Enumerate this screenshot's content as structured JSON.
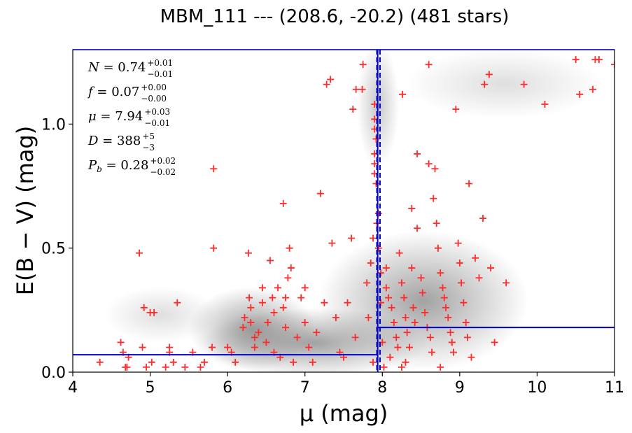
{
  "chart_data": {
    "type": "scatter",
    "title": "MBM_111 --- (208.6, -20.2) (481 stars)",
    "xlabel": "μ (mag)",
    "ylabel": "E(B − V) (mag)",
    "xlim": [
      4,
      11
    ],
    "ylim": [
      0,
      1.3
    ],
    "xticks": [
      "4",
      "5",
      "6",
      "7",
      "8",
      "9",
      "10",
      "11"
    ],
    "yticks": [
      "0.0",
      "0.5",
      "1.0"
    ],
    "grid": false,
    "background": "grayscale stellar density map",
    "colors": {
      "points": "#ff2a2a",
      "model": "#0000cc",
      "frame": "#0000cc"
    },
    "annotations": [
      {
        "name": "N",
        "value": "0.74",
        "sup": "+0.01",
        "sub": "−0.01"
      },
      {
        "name": "f",
        "value": "0.07",
        "sup": "+0.00",
        "sub": "−0.00"
      },
      {
        "name": "μ",
        "value": "7.94",
        "sup": "+0.03",
        "sub": "−0.01"
      },
      {
        "name": "D",
        "value": "388",
        "sup": "+5",
        "sub": "−3"
      },
      {
        "name": "P_b",
        "value": "0.28",
        "sup": "+0.02",
        "sub": "−0.02"
      }
    ],
    "model": {
      "distance_modulus": 7.94,
      "distance_modulus_lower": 7.93,
      "distance_modulus_upper": 7.97,
      "foreground_ebv": 0.07,
      "background_ebv": 0.18
    },
    "points": [
      [
        4.35,
        0.04
      ],
      [
        4.62,
        0.12
      ],
      [
        4.65,
        0.08
      ],
      [
        4.72,
        0.06
      ],
      [
        4.7,
        0.02
      ],
      [
        4.68,
        0.02
      ],
      [
        4.86,
        0.48
      ],
      [
        4.92,
        0.26
      ],
      [
        4.9,
        0.1
      ],
      [
        5.0,
        0.24
      ],
      [
        5.05,
        0.24
      ],
      [
        5.02,
        0.04
      ],
      [
        4.95,
        0.02
      ],
      [
        5.2,
        0.02
      ],
      [
        5.25,
        0.08
      ],
      [
        5.25,
        0.1
      ],
      [
        5.35,
        0.28
      ],
      [
        5.3,
        0.04
      ],
      [
        5.45,
        0.02
      ],
      [
        5.55,
        0.08
      ],
      [
        5.65,
        0.02
      ],
      [
        5.7,
        0.04
      ],
      [
        5.8,
        0.1
      ],
      [
        5.82,
        0.5
      ],
      [
        5.82,
        0.82
      ],
      [
        6.0,
        0.1
      ],
      [
        6.05,
        0.08
      ],
      [
        6.1,
        0.04
      ],
      [
        6.2,
        0.18
      ],
      [
        6.22,
        0.22
      ],
      [
        6.27,
        0.48
      ],
      [
        6.28,
        0.3
      ],
      [
        6.3,
        0.26
      ],
      [
        6.3,
        0.2
      ],
      [
        6.35,
        0.1
      ],
      [
        6.35,
        0.14
      ],
      [
        6.4,
        0.16
      ],
      [
        6.45,
        0.34
      ],
      [
        6.45,
        0.28
      ],
      [
        6.5,
        0.12
      ],
      [
        6.52,
        0.2
      ],
      [
        6.55,
        0.45
      ],
      [
        6.58,
        0.3
      ],
      [
        6.6,
        0.24
      ],
      [
        6.6,
        0.08
      ],
      [
        6.65,
        0.34
      ],
      [
        6.68,
        0.06
      ],
      [
        6.72,
        0.68
      ],
      [
        6.72,
        0.26
      ],
      [
        6.75,
        0.3
      ],
      [
        6.75,
        0.18
      ],
      [
        6.78,
        0.38
      ],
      [
        6.8,
        0.5
      ],
      [
        6.82,
        0.42
      ],
      [
        6.85,
        0.04
      ],
      [
        6.9,
        0.14
      ],
      [
        6.95,
        0.3
      ],
      [
        7.0,
        0.34
      ],
      [
        7.0,
        0.2
      ],
      [
        7.05,
        0.1
      ],
      [
        7.1,
        0.04
      ],
      [
        7.15,
        0.16
      ],
      [
        7.2,
        0.72
      ],
      [
        7.25,
        0.28
      ],
      [
        7.28,
        1.16
      ],
      [
        7.33,
        1.18
      ],
      [
        7.35,
        0.52
      ],
      [
        7.4,
        0.22
      ],
      [
        7.45,
        0.08
      ],
      [
        7.5,
        0.06
      ],
      [
        7.55,
        0.28
      ],
      [
        7.6,
        0.54
      ],
      [
        7.65,
        0.14
      ],
      [
        7.62,
        1.06
      ],
      [
        7.66,
        1.14
      ],
      [
        7.74,
        1.14
      ],
      [
        7.75,
        1.24
      ],
      [
        7.8,
        0.36
      ],
      [
        7.82,
        0.22
      ],
      [
        7.85,
        0.44
      ],
      [
        7.88,
        0.54
      ],
      [
        7.88,
        0.04
      ],
      [
        7.9,
        1.02
      ],
      [
        7.9,
        1.08
      ],
      [
        7.9,
        0.98
      ],
      [
        7.92,
        0.94
      ],
      [
        7.9,
        0.88
      ],
      [
        7.9,
        0.84
      ],
      [
        7.9,
        0.8
      ],
      [
        7.92,
        0.76
      ],
      [
        7.93,
        0.6
      ],
      [
        7.95,
        0.5
      ],
      [
        7.98,
        0.4
      ],
      [
        8.05,
        0.34
      ],
      [
        8.08,
        0.3
      ],
      [
        8.12,
        0.26
      ],
      [
        8.15,
        0.2
      ],
      [
        8.18,
        0.14
      ],
      [
        8.2,
        0.1
      ],
      [
        8.22,
        0.48
      ],
      [
        8.25,
        0.36
      ],
      [
        8.28,
        0.3
      ],
      [
        8.3,
        0.22
      ],
      [
        8.32,
        0.16
      ],
      [
        8.35,
        0.1
      ],
      [
        8.38,
        0.42
      ],
      [
        8.4,
        0.26
      ],
      [
        8.42,
        0.2
      ],
      [
        8.45,
        0.88
      ],
      [
        8.5,
        0.38
      ],
      [
        8.52,
        0.32
      ],
      [
        8.55,
        0.24
      ],
      [
        8.58,
        0.18
      ],
      [
        8.6,
        0.84
      ],
      [
        8.62,
        0.14
      ],
      [
        8.64,
        0.08
      ],
      [
        8.66,
        0.7
      ],
      [
        8.68,
        0.82
      ],
      [
        8.7,
        0.6
      ],
      [
        8.72,
        0.5
      ],
      [
        8.75,
        0.4
      ],
      [
        8.78,
        0.34
      ],
      [
        8.8,
        0.3
      ],
      [
        8.82,
        0.26
      ],
      [
        8.85,
        0.22
      ],
      [
        8.88,
        0.16
      ],
      [
        8.9,
        0.12
      ],
      [
        8.92,
        0.08
      ],
      [
        8.95,
        1.06
      ],
      [
        8.98,
        0.52
      ],
      [
        9.0,
        0.44
      ],
      [
        9.02,
        0.36
      ],
      [
        9.05,
        0.28
      ],
      [
        9.08,
        0.2
      ],
      [
        9.1,
        0.14
      ],
      [
        9.12,
        0.76
      ],
      [
        9.15,
        0.06
      ],
      [
        9.2,
        0.46
      ],
      [
        9.25,
        0.38
      ],
      [
        9.3,
        0.62
      ],
      [
        9.32,
        1.16
      ],
      [
        9.38,
        1.2
      ],
      [
        9.4,
        0.42
      ],
      [
        9.45,
        0.12
      ],
      [
        9.6,
        0.36
      ],
      [
        9.83,
        1.16
      ],
      [
        10.1,
        1.08
      ],
      [
        10.5,
        1.26
      ],
      [
        10.55,
        1.12
      ],
      [
        10.72,
        1.14
      ],
      [
        10.75,
        1.26
      ],
      [
        10.8,
        1.26
      ],
      [
        11.0,
        1.24
      ],
      [
        8.6,
        1.24
      ],
      [
        8.26,
        1.12
      ],
      [
        8.25,
        0.02
      ],
      [
        8.75,
        0.02
      ],
      [
        8.0,
        0.12
      ],
      [
        8.1,
        0.06
      ],
      [
        8.02,
        0.02
      ],
      [
        7.98,
        0.28
      ],
      [
        8.05,
        0.42
      ],
      [
        7.95,
        0.64
      ],
      [
        8.3,
        0.04
      ],
      [
        8.45,
        0.58
      ],
      [
        8.38,
        0.66
      ]
    ]
  }
}
